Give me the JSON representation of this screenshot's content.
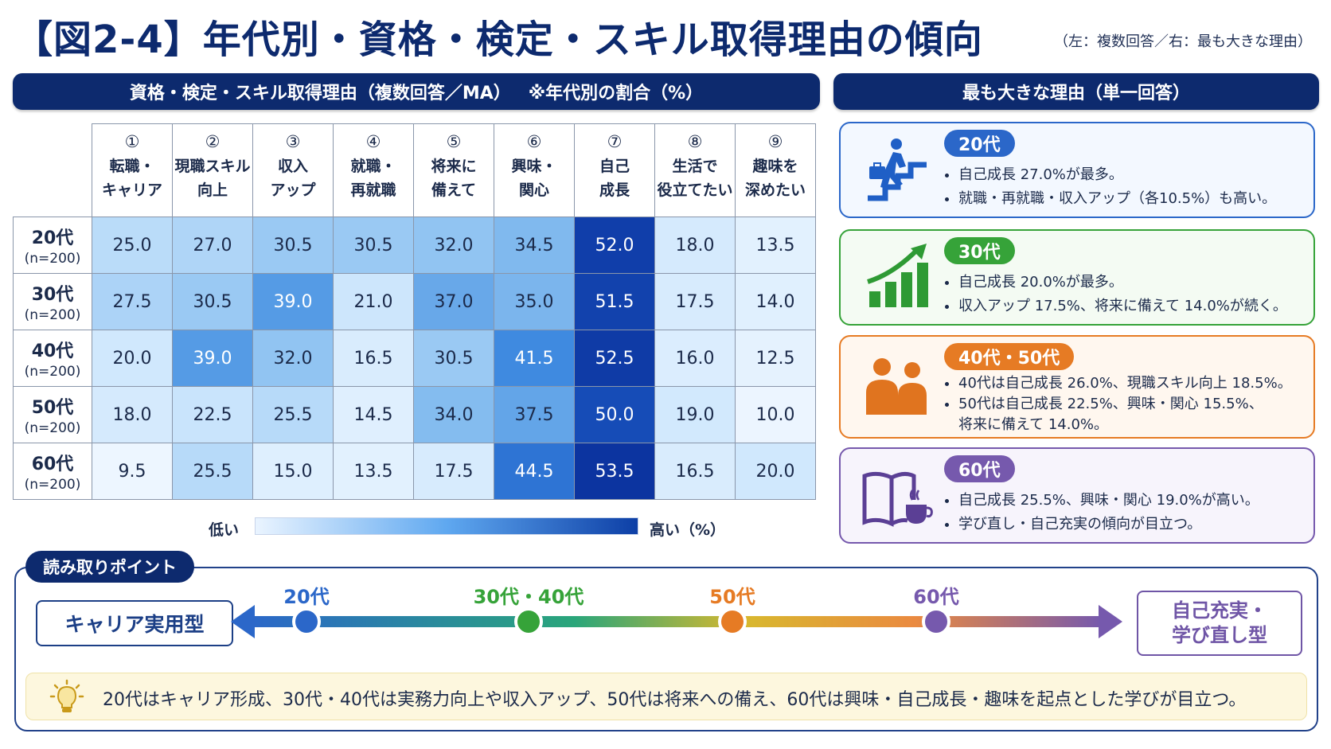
{
  "header": {
    "title": "【図2-4】年代別・資格・検定・スキル取得理由の傾向",
    "note": "（左：複数回答／右：最も大きな理由）"
  },
  "table_bar": {
    "label": "資格・検定・スキル取得理由（複数回答／MA）",
    "note": "※年代別の割合（%）"
  },
  "chart_data": {
    "type": "heatmap",
    "columns": [
      {
        "num": "①",
        "label": "転職・\nキャリア"
      },
      {
        "num": "②",
        "label": "現職スキル\n向上"
      },
      {
        "num": "③",
        "label": "収入\nアップ"
      },
      {
        "num": "④",
        "label": "就職・\n再就職"
      },
      {
        "num": "⑤",
        "label": "将来に\n備えて"
      },
      {
        "num": "⑥",
        "label": "興味・\n関心"
      },
      {
        "num": "⑦",
        "label": "自己\n成長"
      },
      {
        "num": "⑧",
        "label": "生活で\n役立てたい"
      },
      {
        "num": "⑨",
        "label": "趣味を\n深めたい"
      }
    ],
    "rows": [
      {
        "age": "20代",
        "n": "(n=200)",
        "values": [
          25.0,
          27.0,
          30.5,
          30.5,
          32.0,
          34.5,
          52.0,
          18.0,
          13.5
        ]
      },
      {
        "age": "30代",
        "n": "(n=200)",
        "values": [
          27.5,
          30.5,
          39.0,
          21.0,
          37.0,
          35.0,
          51.5,
          17.5,
          14.0
        ]
      },
      {
        "age": "40代",
        "n": "(n=200)",
        "values": [
          20.0,
          39.0,
          32.0,
          16.5,
          30.5,
          41.5,
          52.5,
          16.0,
          12.5
        ]
      },
      {
        "age": "50代",
        "n": "(n=200)",
        "values": [
          18.0,
          22.5,
          25.5,
          14.5,
          34.0,
          37.5,
          50.0,
          19.0,
          10.0
        ]
      },
      {
        "age": "60代",
        "n": "(n=200)",
        "values": [
          9.5,
          25.5,
          15.0,
          13.5,
          17.5,
          44.5,
          53.5,
          16.5,
          20.0
        ]
      }
    ],
    "legend": {
      "low": "低い",
      "high": "高い（%）"
    }
  },
  "reasons": {
    "bar_label": "最も大きな理由（単一回答）",
    "cards": [
      {
        "badge": "20代",
        "lines": [
          "自己成長 27.0%が最多。",
          "就職・再就職・収入アップ（各10.5%）も高い。"
        ],
        "icon": "climbing-stairs-icon",
        "color": "#2b67c9"
      },
      {
        "badge": "30代",
        "lines": [
          "自己成長 20.0%が最多。",
          "収入アップ 17.5%、将来に備えて 14.0%が続く。"
        ],
        "icon": "growth-chart-icon",
        "color": "#36a339"
      },
      {
        "badge": "40代・50代",
        "lines": [
          "40代は自己成長 26.0%、現職スキル向上 18.5%。",
          "50代は自己成長 22.5%、興味・関心 15.5%、　　　将来に備えて 14.0%。"
        ],
        "icon": "people-icon",
        "color": "#e67b24"
      },
      {
        "badge": "60代",
        "lines": [
          "自己成長 25.5%、興味・関心 19.0%が高い。",
          "学び直し・自己充実の傾向が目立つ。"
        ],
        "icon": "book-coffee-icon",
        "color": "#7659ad"
      }
    ]
  },
  "points": {
    "tab": "読み取りポイント",
    "left_type": "キャリア実用型",
    "right_type": "自己充実・\n学び直し型",
    "ages": [
      {
        "label": "20代",
        "color": "#2b67c9"
      },
      {
        "label": "30代・40代",
        "color": "#36a339"
      },
      {
        "label": "50代",
        "color": "#e67b24"
      },
      {
        "label": "60代",
        "color": "#7659ad"
      }
    ],
    "summary": "20代はキャリア形成、30代・40代は実務力向上や収入アップ、50代は将来への備え、60代は興味・自己成長・趣味を起点とした学びが目立つ。"
  }
}
